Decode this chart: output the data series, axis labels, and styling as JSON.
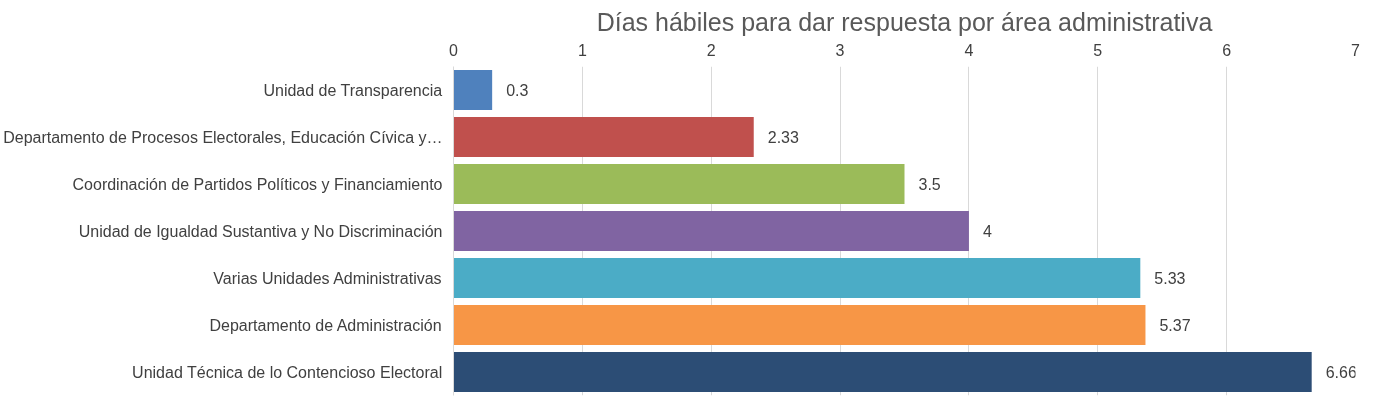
{
  "chart_data": {
    "type": "bar",
    "orientation": "horizontal",
    "title": "Días hábiles para dar respuesta por área administrativa",
    "categories": [
      "Unidad de Transparencia",
      "Departamento de Procesos Electorales, Educación Cívica y…",
      "Coordinación de Partidos Políticos y Financiamiento",
      "Unidad de Igualdad Sustantiva y No Discriminación",
      "Varias Unidades Administrativas",
      "Departamento de Administración",
      "Unidad Técnica de lo Contencioso Electoral"
    ],
    "values": [
      0.3,
      2.33,
      3.5,
      4,
      5.33,
      5.37,
      6.66
    ],
    "colors": [
      "#4f81bd",
      "#c0504d",
      "#9bbb59",
      "#8064a2",
      "#4bacc6",
      "#f79646",
      "#2c4d75"
    ],
    "xlim": [
      0,
      7
    ],
    "xticks": [
      0,
      1,
      2,
      3,
      4,
      5,
      6,
      7
    ],
    "grid": "x",
    "data_labels": true
  }
}
